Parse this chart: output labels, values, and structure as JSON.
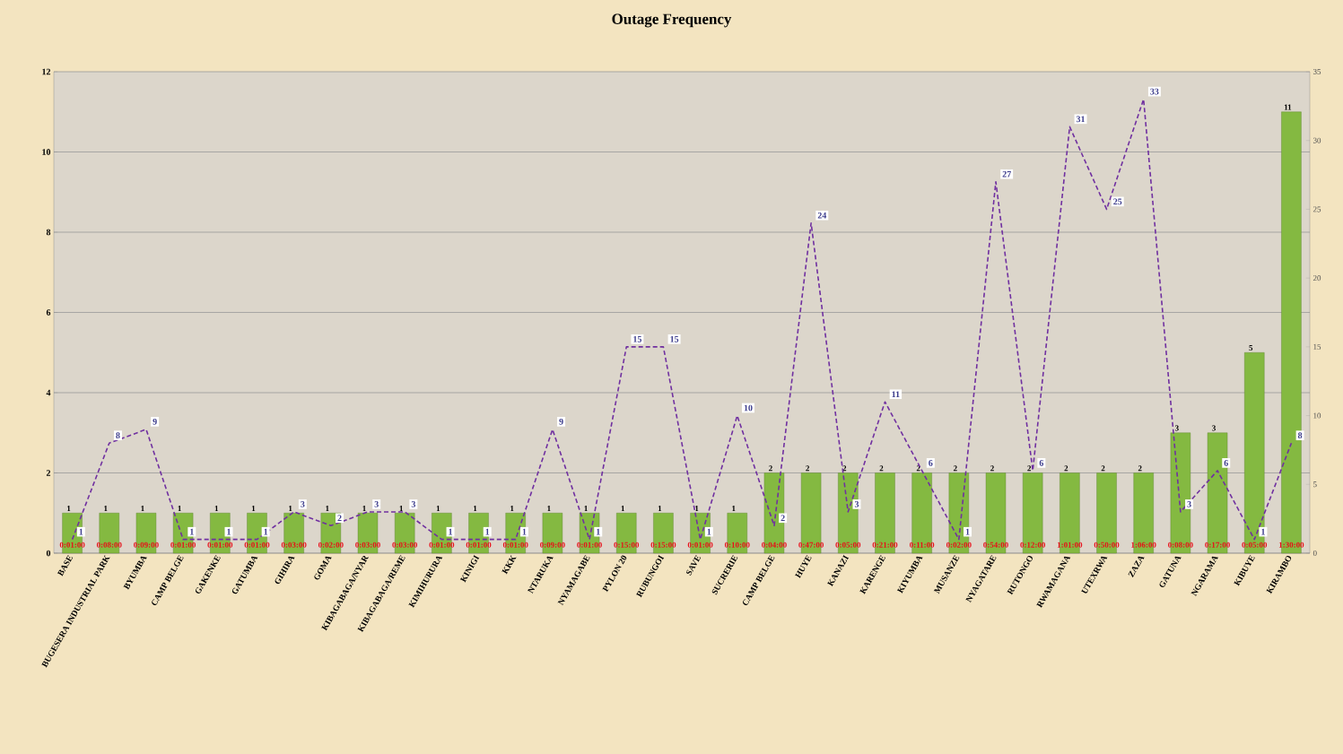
{
  "chart_data": {
    "type": "bar",
    "title": "Outage Frequency",
    "categories": [
      "BASE",
      "BUGESERA INDUSTRIAL PARK",
      "BYUMBA",
      "CAMP BELGE",
      "GAKENKE",
      "GATUMBA",
      "GIHIRA",
      "GOMA",
      "KIBAGABAGA/NYAR",
      "KIBAGABAGA/REME",
      "KIMIHURURA",
      "KINIGI",
      "KKK",
      "NTARUKA",
      "NYAMAGABE",
      "PYLON 20",
      "RUBUNGOI",
      "SAVE",
      "SUCRERIE",
      "CAMP BELGE",
      "HUYE",
      "KANAZI",
      "KARENGE",
      "KIYUMBA",
      "MUSANZE",
      "NYAGATARE",
      "RUTONGO",
      "RWAMAGANA",
      "UTEXRWA",
      "ZAZA",
      "GATUNA",
      "NGARAMA",
      "KIBUYE",
      "KIRAMBO"
    ],
    "series": [
      {
        "color": "#84b941",
        "values": [
          1,
          1,
          1,
          1,
          1,
          1,
          1,
          1,
          1,
          1,
          1,
          1,
          1,
          1,
          1,
          1,
          1,
          1,
          1,
          2,
          2,
          2,
          2,
          2,
          2,
          2,
          2,
          2,
          2,
          2,
          3,
          3,
          5,
          11
        ]
      },
      {
        "type": "line",
        "axis": "y2",
        "color": "#7030a0",
        "line_style": "dashed",
        "values": [
          1,
          8,
          9,
          1,
          1,
          1,
          3,
          2,
          3,
          3,
          1,
          1,
          1,
          9,
          1,
          15,
          15,
          1,
          10,
          2,
          24,
          3,
          11,
          6,
          1,
          27,
          6,
          31,
          25,
          33,
          3,
          6,
          1,
          8
        ]
      }
    ],
    "ylim": [
      0,
      12
    ],
    "yticks": [
      0,
      2,
      4,
      6,
      8,
      10,
      12
    ],
    "y2lim": [
      0,
      35
    ],
    "y2ticks": [
      0,
      5,
      10,
      15,
      20,
      25,
      30,
      35
    ],
    "grid": "y",
    "data_labels": true,
    "annotations": [
      "0:01:00",
      "0:08:00",
      "0:09:00",
      "0:01:00",
      "0:01:00",
      "0:01:00",
      "0:03:00",
      "0:02:00",
      "0:03:00",
      "0:03:00",
      "0:01:00",
      "0:01:00",
      "0:01:00",
      "0:09:00",
      "0:01:00",
      "0:15:00",
      "0:15:00",
      "0:01:00",
      "0:10:00",
      "0:04:00",
      "0:47:00",
      "0:05:00",
      "0:21:00",
      "0:11:00",
      "0:02:00",
      "0:54:00",
      "0:12:00",
      "1:01:00",
      "0:50:00",
      "1:06:00",
      "0:08:00",
      "0:17:00",
      "0:05:00",
      "1:30:00"
    ]
  }
}
